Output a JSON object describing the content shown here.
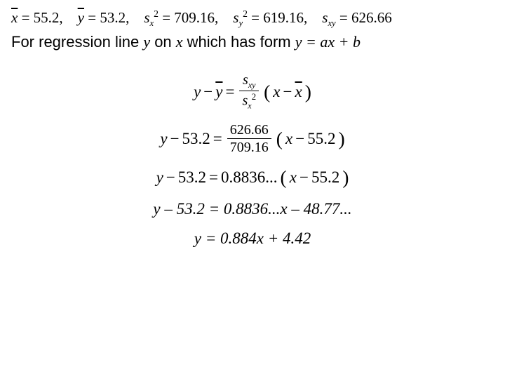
{
  "stats": {
    "xbar_label": "x",
    "xbar_val": "55.2",
    "ybar_label": "y",
    "ybar_val": "53.2",
    "sx2_val": "709.16",
    "sy2_val": "619.16",
    "sxy_val": "626.66"
  },
  "text": {
    "regression_prefix": "For regression line ",
    "y": "y",
    "on": " on ",
    "x": "x",
    "which": " which has form ",
    "form": "y = ax + b"
  },
  "eq1": {
    "lhs_y": "y",
    "minus": " − ",
    "ybar": "y",
    "eq": " = ",
    "num": "s",
    "num_sub": "xy",
    "den": "s",
    "den_sub": "x",
    "den_sup": "2",
    "lparen": "(",
    "xvar": "x",
    "xbar": "x",
    "rparen": ")"
  },
  "eq2": {
    "lhs": "y",
    "minus": " − ",
    "val1": "53.2",
    "eq": " = ",
    "num": "626.66",
    "den": "709.16",
    "lparen": "(",
    "xvar": "x",
    "xval": "55.2",
    "rparen": ")"
  },
  "eq3": {
    "lhs": "y",
    "minus": " − ",
    "val1": "53.2",
    "eq": " = ",
    "coef": "0.8836...",
    "lparen": "(",
    "xvar": "x",
    "xval": "55.2",
    "rparen": ")"
  },
  "eq4": {
    "text": "y – 53.2 = 0.8836...x – 48.77..."
  },
  "eq5": {
    "text": "y = 0.884x + 4.42"
  },
  "colors": {
    "text": "#000000",
    "bg": "#ffffff"
  },
  "fonts": {
    "math": "Times New Roman",
    "body": "Arial"
  }
}
